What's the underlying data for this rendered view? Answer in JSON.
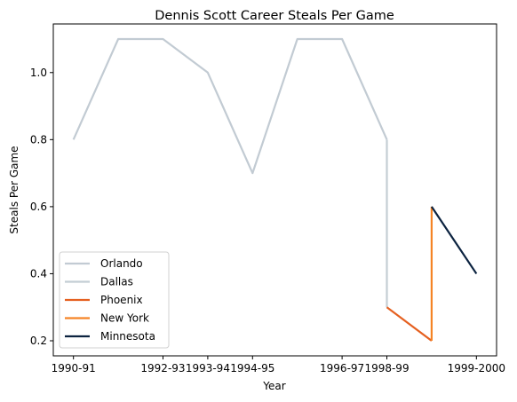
{
  "chart_data": {
    "type": "line",
    "title": "Dennis Scott  Career Steals Per Game",
    "xlabel": "Year",
    "ylabel": "Steals Per Game",
    "x_ticks": [
      "1990-91",
      "1992-93",
      "1993-94",
      "1994-95",
      "1996-97",
      "1998-99",
      "1999-2000"
    ],
    "x_tick_positions": [
      0,
      2,
      3,
      4,
      6,
      7,
      9
    ],
    "y_ticks": [
      0.2,
      0.4,
      0.6,
      0.8,
      1.0
    ],
    "xlim": [
      -0.45,
      9.45
    ],
    "ylim": [
      0.155,
      1.145
    ],
    "grid": false,
    "legend_position": "lower-left",
    "series": [
      {
        "name": "Orlando",
        "color": "#c2cbd3",
        "points": [
          [
            0,
            0.8
          ],
          [
            1,
            1.1
          ],
          [
            2,
            1.1
          ],
          [
            3,
            1.0
          ],
          [
            4,
            0.7
          ],
          [
            5,
            1.1
          ],
          [
            6,
            1.1
          ],
          [
            7,
            0.8
          ]
        ]
      },
      {
        "name": "Dallas",
        "color": "#c4ced4",
        "points": [
          [
            7,
            0.8
          ],
          [
            7,
            0.3
          ]
        ]
      },
      {
        "name": "Phoenix",
        "color": "#e56020",
        "points": [
          [
            7,
            0.3
          ],
          [
            8,
            0.2
          ]
        ]
      },
      {
        "name": "New York",
        "color": "#f58426",
        "points": [
          [
            8,
            0.2
          ],
          [
            8,
            0.6
          ]
        ]
      },
      {
        "name": "Minnesota",
        "color": "#0c2340",
        "points": [
          [
            8,
            0.6
          ],
          [
            9,
            0.4
          ]
        ]
      }
    ]
  }
}
